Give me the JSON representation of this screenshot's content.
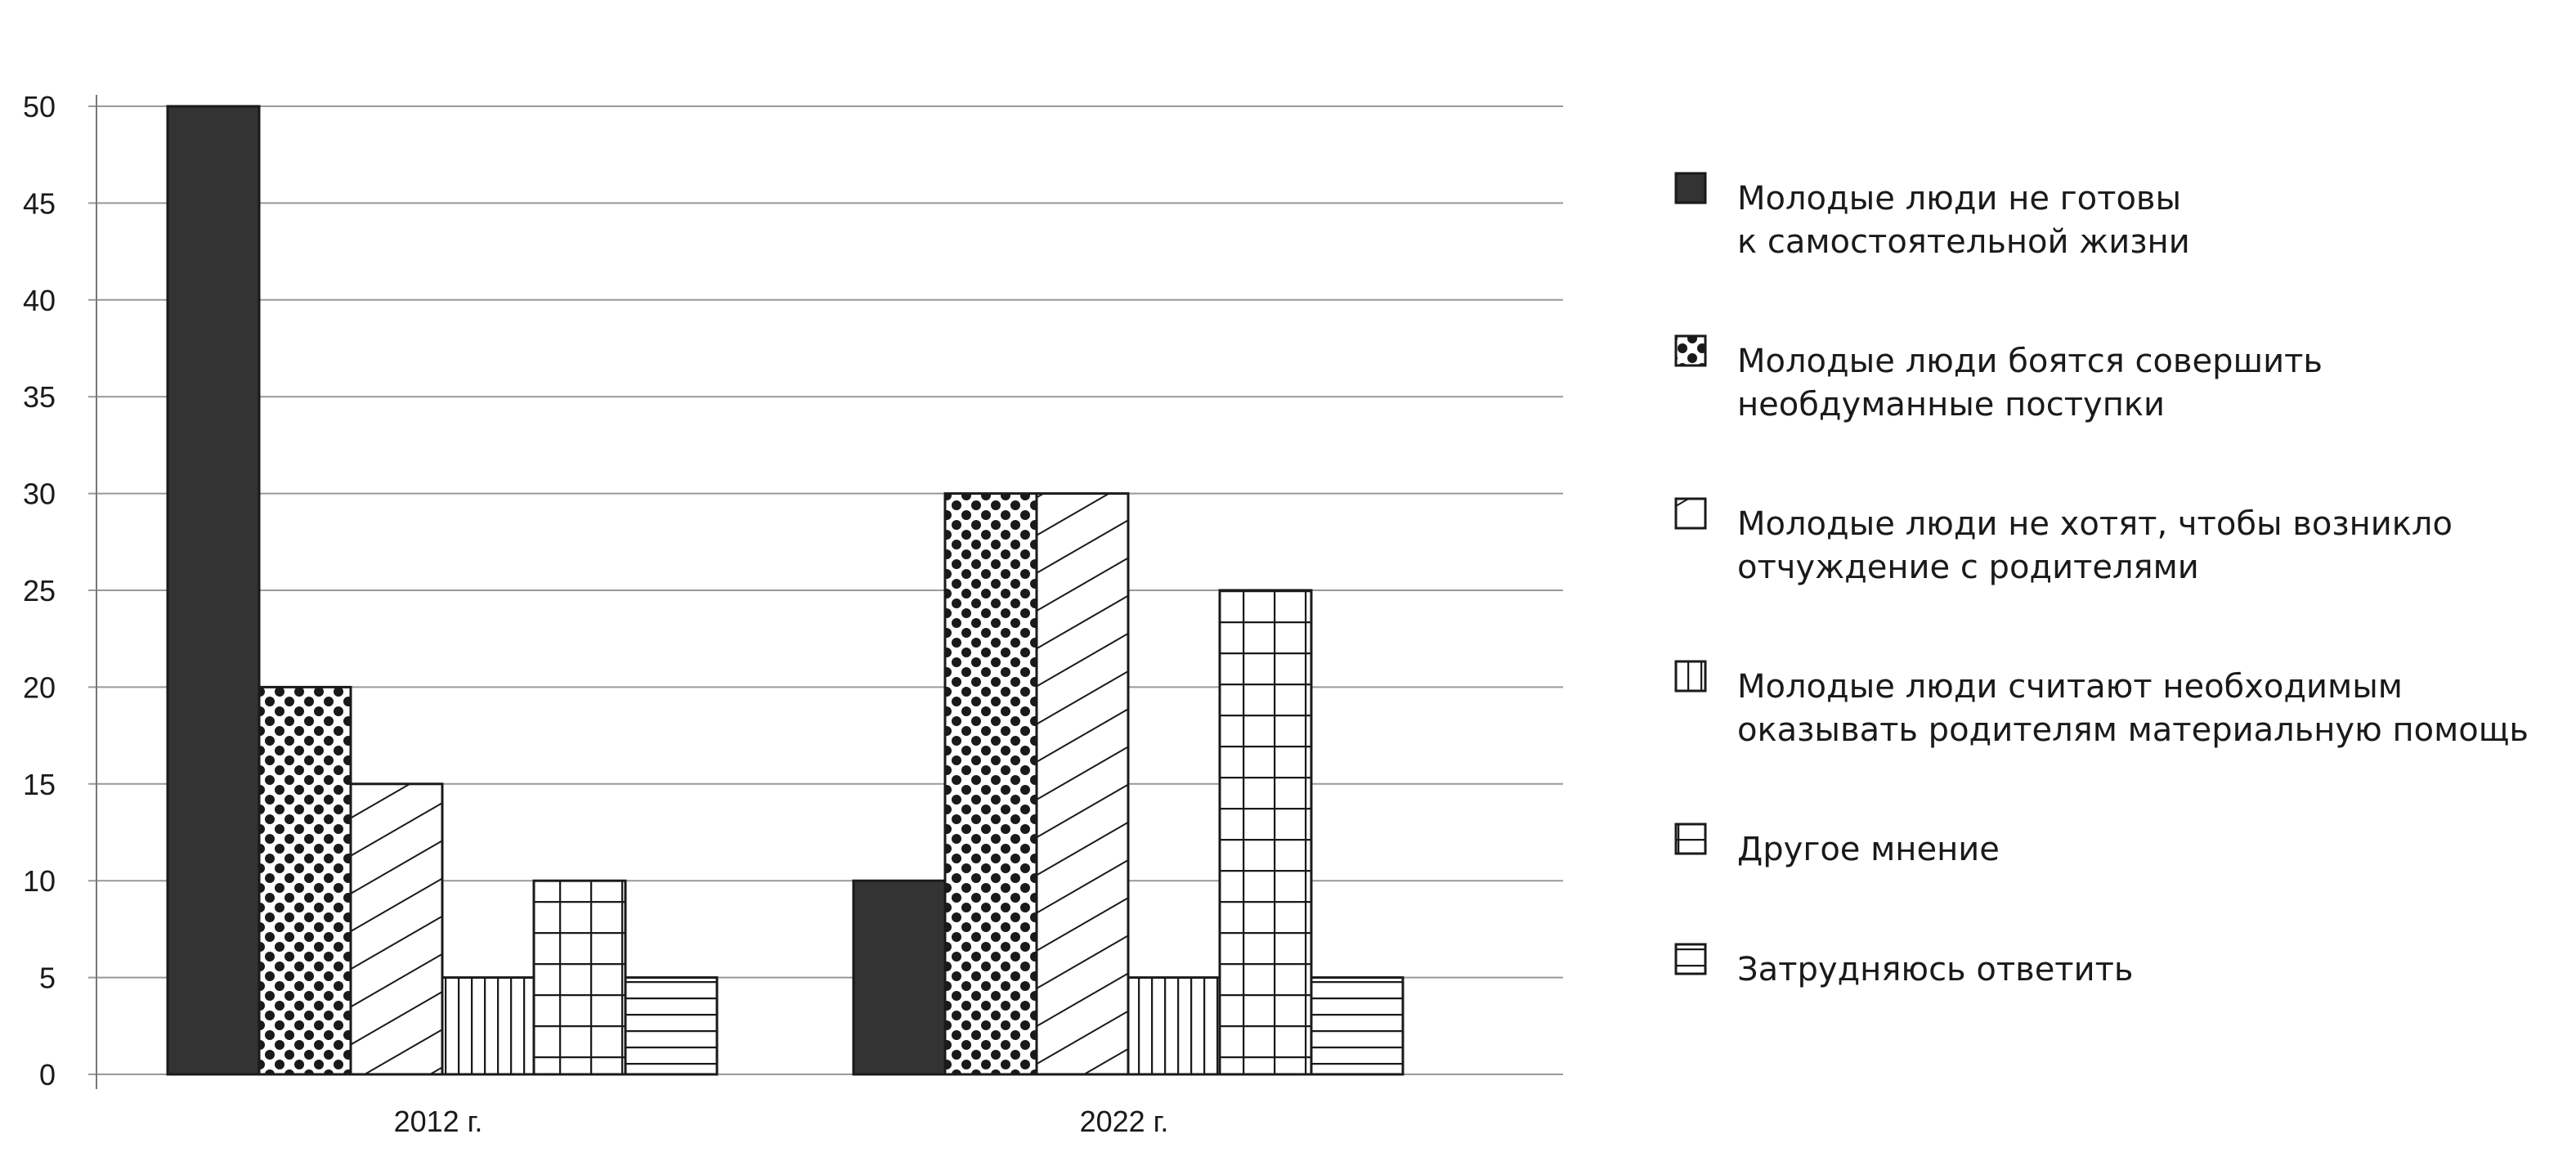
{
  "chart_data": {
    "type": "bar",
    "title": "",
    "xlabel": "",
    "ylabel": "",
    "ylim": [
      0,
      50
    ],
    "yticks": [
      0,
      5,
      10,
      15,
      20,
      25,
      30,
      35,
      40,
      45,
      50
    ],
    "grid": true,
    "legend_position": "right",
    "categories": [
      "2012 г.",
      "2022 г."
    ],
    "series": [
      {
        "name": "Молодые люди не готовы к самостоятельной жизни",
        "legend_lines": [
          "Молодые люди не готовы",
          "к самостоятельной жизни"
        ],
        "pattern": "solid",
        "values": [
          50,
          10
        ]
      },
      {
        "name": "Молодые люди боятся совершить необдуманные поступки",
        "legend_lines": [
          "Молодые люди боятся совершить",
          "необдуманные  поступки"
        ],
        "pattern": "dots",
        "values": [
          20,
          30
        ]
      },
      {
        "name": "Молодые люди не хотят, чтобы возникло отчуждение с родителями",
        "legend_lines": [
          "Молодые люди не хотят, чтобы возникло",
          "отчуждение с родителями"
        ],
        "pattern": "diagonal",
        "values": [
          15,
          30
        ]
      },
      {
        "name": "Молодые люди считают необходимым оказывать родителям материальную помощь",
        "legend_lines": [
          "Молодые люди считают необходимым",
          "оказывать родителям материальную помощь"
        ],
        "pattern": "vertical",
        "values": [
          5,
          5
        ]
      },
      {
        "name": "Другое мнение",
        "legend_lines": [
          "Другое мнение"
        ],
        "pattern": "grid",
        "values": [
          10,
          25
        ]
      },
      {
        "name": "Затрудняюсь ответить",
        "legend_lines": [
          "Затрудняюсь ответить"
        ],
        "pattern": "horizontal",
        "values": [
          5,
          5
        ]
      }
    ],
    "colors": {
      "bar_fill": "#333333",
      "outline": "#1a1a1a",
      "grid": "#999999"
    }
  }
}
